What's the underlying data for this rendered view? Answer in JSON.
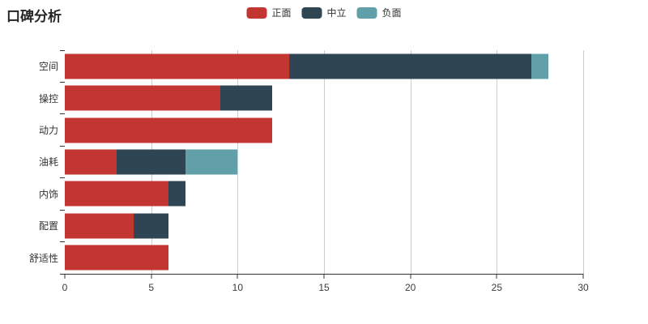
{
  "title": "口碑分析",
  "legend": {
    "items": [
      {
        "label": "正面",
        "color": "#c23531"
      },
      {
        "label": "中立",
        "color": "#2f4554"
      },
      {
        "label": "负面",
        "color": "#61a0a8"
      }
    ]
  },
  "chart_data": {
    "type": "bar",
    "orientation": "horizontal",
    "stacked": true,
    "title": "口碑分析",
    "categories": [
      "空间",
      "操控",
      "动力",
      "油耗",
      "内饰",
      "配置",
      "舒适性"
    ],
    "series": [
      {
        "name": "正面",
        "color": "#c23531",
        "values": [
          13,
          9,
          12,
          3,
          6,
          4,
          6
        ]
      },
      {
        "name": "中立",
        "color": "#2f4554",
        "values": [
          14,
          3,
          0,
          4,
          1,
          2,
          0
        ]
      },
      {
        "name": "负面",
        "color": "#61a0a8",
        "values": [
          1,
          0,
          0,
          3,
          0,
          0,
          0
        ]
      }
    ],
    "xlabel": "",
    "ylabel": "",
    "xlim": [
      0,
      30
    ],
    "x_ticks": [
      0,
      5,
      10,
      15,
      20,
      25,
      30
    ],
    "grid": true,
    "legend_position": "top-center"
  },
  "colors": {
    "gridline": "#cccccc",
    "axis": "#333333",
    "text": "#333333"
  }
}
